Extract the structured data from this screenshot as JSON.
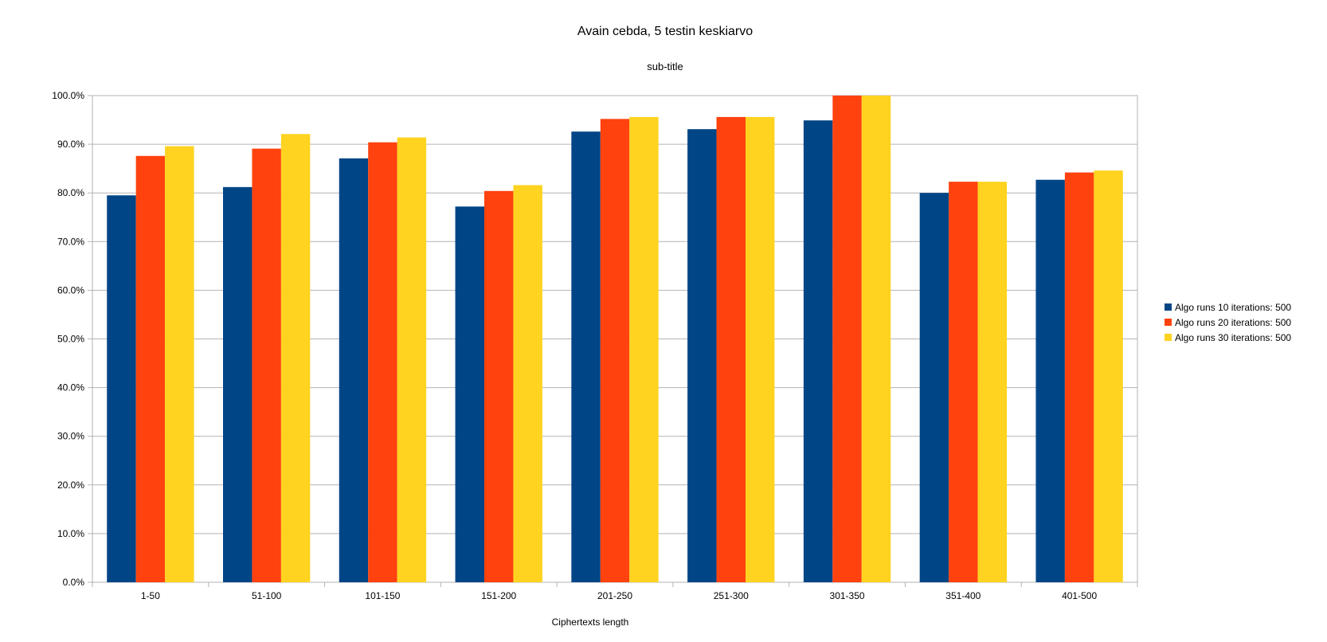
{
  "chart_data": {
    "type": "bar",
    "title": "Avain cebda, 5 testin keskiarvo",
    "subtitle": "sub-title",
    "xlabel": "Ciphertexts length",
    "ylabel": "",
    "categories": [
      "1-50",
      "51-100",
      "101-150",
      "151-200",
      "201-250",
      "251-300",
      "301-350",
      "351-400",
      "401-500"
    ],
    "series": [
      {
        "name": "Algo runs 10 iterations: 500",
        "color": "#004586",
        "values": [
          79.5,
          81.2,
          87.1,
          77.2,
          92.6,
          93.1,
          94.9,
          80.0,
          82.7
        ]
      },
      {
        "name": "Algo runs 20 iterations: 500",
        "color": "#ff420e",
        "values": [
          87.6,
          89.1,
          90.4,
          80.4,
          95.2,
          95.6,
          100.0,
          82.3,
          84.2
        ]
      },
      {
        "name": "Algo runs 30 iterations: 500",
        "color": "#ffd320",
        "values": [
          89.6,
          92.1,
          91.4,
          81.6,
          95.6,
          95.6,
          100.0,
          82.3,
          84.6
        ]
      }
    ],
    "yticks": [
      "0.0%",
      "10.0%",
      "20.0%",
      "30.0%",
      "40.0%",
      "50.0%",
      "60.0%",
      "70.0%",
      "80.0%",
      "90.0%",
      "100.0%"
    ],
    "ylim": [
      0,
      100
    ],
    "grid": true,
    "legend_position": "right"
  }
}
